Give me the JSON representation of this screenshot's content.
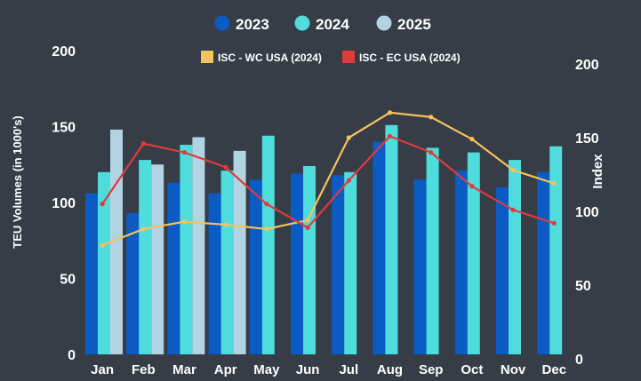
{
  "chart_data": {
    "type": "bar",
    "title": "",
    "xlabel": "",
    "ylabel": "TEU Volumes  (in 1000's)",
    "y2label": "Index",
    "ylim": [
      0,
      200
    ],
    "y2lim": [
      0,
      200
    ],
    "yticks": [
      "0",
      "50",
      "100",
      "150",
      "200"
    ],
    "y2ticks": [
      "0",
      "50",
      "100",
      "150",
      "200"
    ],
    "categories": [
      "Jan",
      "Feb",
      "Mar",
      "Apr",
      "May",
      "Jun",
      "Jul",
      "Aug",
      "Sep",
      "Oct",
      "Nov",
      "Dec"
    ],
    "series": [
      {
        "name": "2023",
        "type": "bar",
        "color": "#0a5bc4",
        "values": [
          106,
          93,
          113,
          106,
          115,
          119,
          118,
          140,
          115,
          121,
          110,
          120
        ]
      },
      {
        "name": "2024",
        "type": "bar",
        "color": "#4fdcdc",
        "values": [
          120,
          128,
          138,
          121,
          144,
          124,
          120,
          151,
          136,
          133,
          128,
          137
        ]
      },
      {
        "name": "2025",
        "type": "bar",
        "color": "#b2d3e2",
        "values": [
          148,
          125,
          143,
          134,
          null,
          null,
          null,
          null,
          null,
          null,
          null,
          null
        ]
      }
    ],
    "lines": [
      {
        "name": "ISC - WC USA (2024)",
        "axis": "right",
        "color": "#f6c15e",
        "values": [
          77,
          88,
          93,
          91,
          88,
          94,
          150,
          167,
          164,
          149,
          128,
          119
        ]
      },
      {
        "name": "ISC - EC USA (2024)",
        "axis": "right",
        "color": "#e03a3e",
        "values": [
          105,
          146,
          140,
          130,
          105,
          89,
          121,
          151,
          140,
          117,
          101,
          92
        ]
      }
    ],
    "legend_position": "top"
  }
}
